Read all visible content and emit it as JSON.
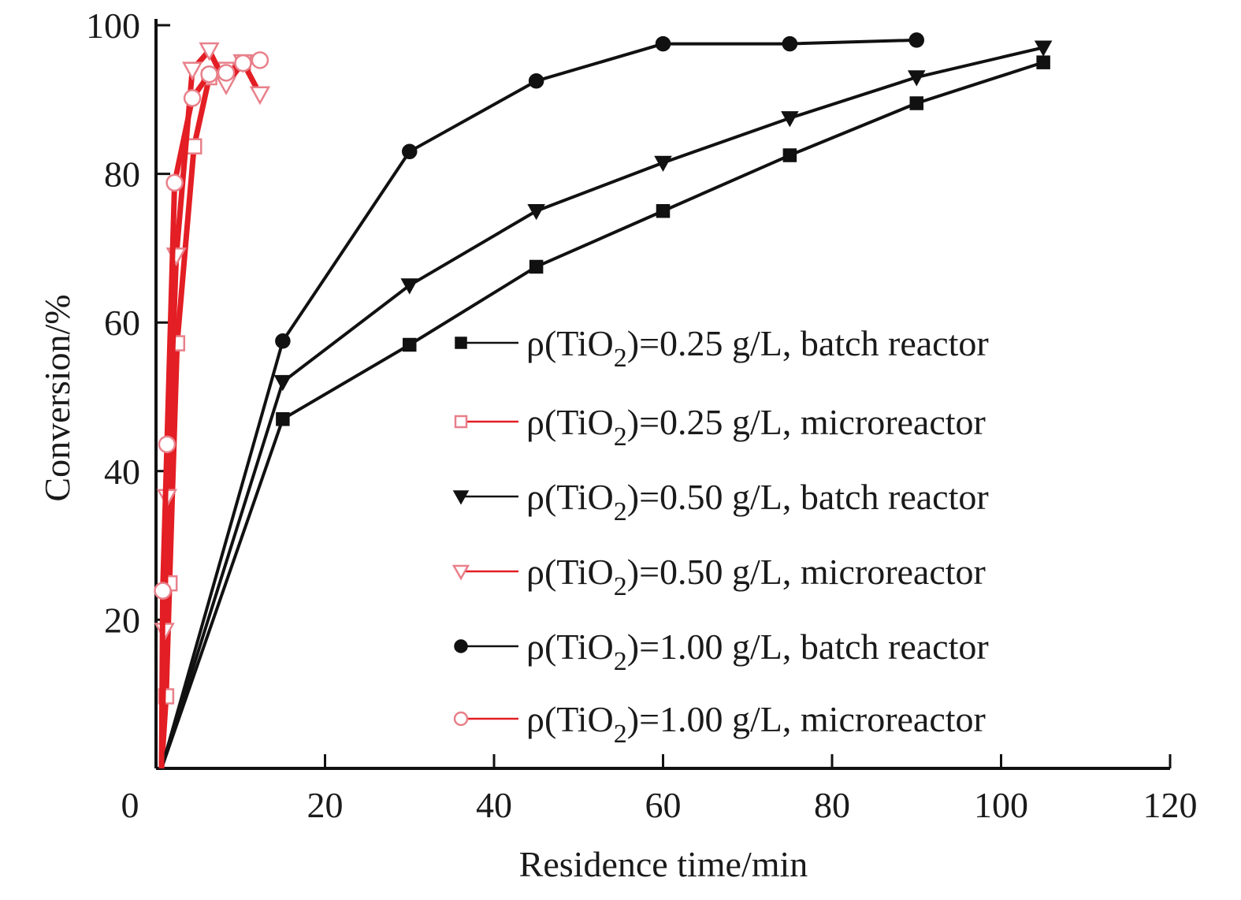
{
  "chart_data": {
    "type": "line",
    "xlabel": "Residence time/min",
    "ylabel": "Conversion/%",
    "xlim": [
      0,
      120
    ],
    "ylim": [
      0,
      100
    ],
    "xticks": [
      "0",
      "20",
      "40",
      "60",
      "80",
      "100",
      "120"
    ],
    "yticks": [
      "20",
      "40",
      "60",
      "80",
      "100"
    ],
    "grid": false,
    "legend_position": "center-right",
    "series": [
      {
        "name": "ρ(TiO2)=0.25 g/L, batch reactor",
        "color": "#111111",
        "marker": "square-filled",
        "x": [
          0,
          15,
          30,
          45,
          60,
          75,
          90,
          105
        ],
        "y": [
          0,
          47,
          57,
          67.5,
          75,
          82.5,
          89.5,
          95
        ]
      },
      {
        "name": "ρ(TiO2)=0.25 g/L, microreactor",
        "color": "#e31e24",
        "marker": "square-open",
        "x": [
          0,
          1.2,
          1.6,
          2.5,
          4.5,
          6.3,
          8.3,
          10.3
        ],
        "y": [
          0,
          9.7,
          24.9,
          57.2,
          83.7,
          93,
          94,
          95
        ]
      },
      {
        "name": "ρ(TiO2)=0.50 g/L, batch reactor",
        "color": "#111111",
        "marker": "triangle-down-filled",
        "x": [
          0,
          15,
          30,
          45,
          60,
          75,
          90,
          105
        ],
        "y": [
          0,
          52,
          65,
          75,
          81.5,
          87.5,
          93,
          97
        ]
      },
      {
        "name": "ρ(TiO2)=0.50 g/L, microreactor",
        "color": "#e31e24",
        "marker": "triangle-down-open",
        "x": [
          0,
          1.0,
          1.3,
          2.4,
          4.3,
          6.3,
          8.3,
          10.3,
          12.3
        ],
        "y": [
          0,
          18.5,
          36.5,
          69,
          94,
          96.6,
          92,
          95,
          90.7
        ]
      },
      {
        "name": "ρ(TiO2)=1.00 g/L, batch reactor",
        "color": "#111111",
        "marker": "circle-filled",
        "x": [
          0,
          15,
          30,
          45,
          60,
          75,
          90
        ],
        "y": [
          0,
          57.5,
          83,
          92.5,
          97.5,
          97.5,
          98
        ]
      },
      {
        "name": "ρ(TiO2)=1.00 g/L, microreactor",
        "color": "#e31e24",
        "marker": "circle-open",
        "x": [
          0,
          0.8,
          1.3,
          2.2,
          4.3,
          6.3,
          8.3,
          10.3,
          12.3
        ],
        "y": [
          0,
          23.9,
          43.6,
          78.8,
          90.2,
          93.4,
          93.6,
          94.9,
          95.3
        ]
      }
    ],
    "legend": [
      {
        "prefix": "ρ(TiO",
        "sub": "2",
        "suffix": ")=0.25 g/L, batch reactor"
      },
      {
        "prefix": "ρ(TiO",
        "sub": "2",
        "suffix": ")=0.25 g/L, microreactor"
      },
      {
        "prefix": "ρ(TiO",
        "sub": "2",
        "suffix": ")=0.50 g/L, batch reactor"
      },
      {
        "prefix": "ρ(TiO",
        "sub": "2",
        "suffix": ")=0.50 g/L, microreactor"
      },
      {
        "prefix": "ρ(TiO",
        "sub": "2",
        "suffix": ")=1.00 g/L, batch reactor"
      },
      {
        "prefix": "ρ(TiO",
        "sub": "2",
        "suffix": ")=1.00 g/L, microreactor"
      }
    ]
  }
}
